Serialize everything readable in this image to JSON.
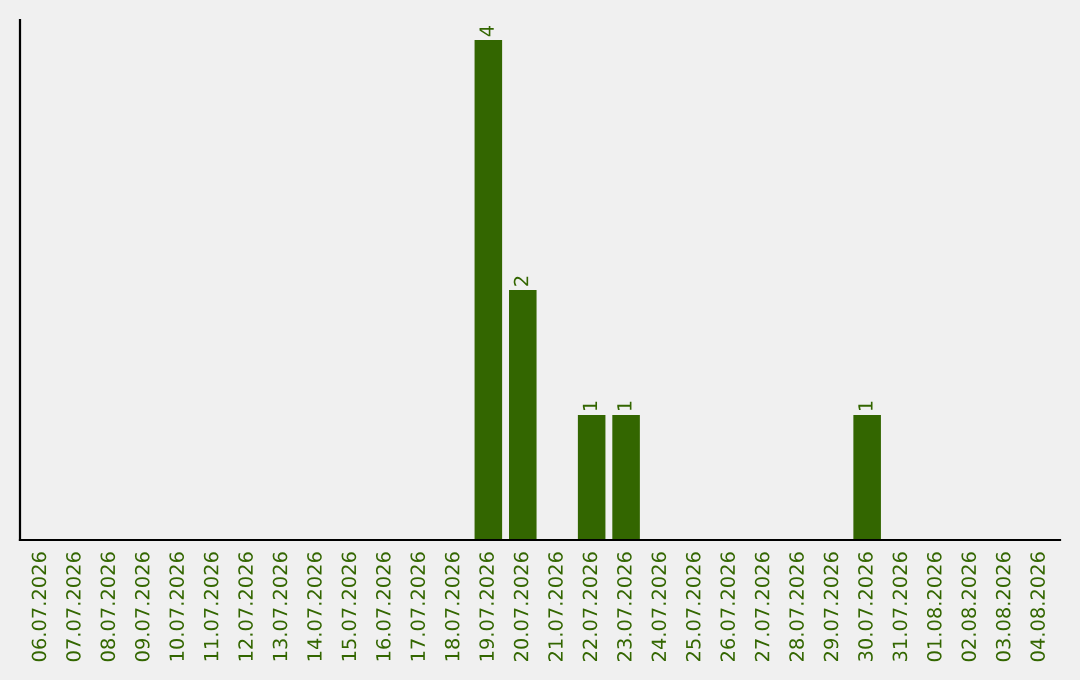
{
  "chart_data": {
    "type": "bar",
    "categories": [
      "06.07.2026",
      "07.07.2026",
      "08.07.2026",
      "09.07.2026",
      "10.07.2026",
      "11.07.2026",
      "12.07.2026",
      "13.07.2026",
      "14.07.2026",
      "15.07.2026",
      "16.07.2026",
      "17.07.2026",
      "18.07.2026",
      "19.07.2026",
      "20.07.2026",
      "21.07.2026",
      "22.07.2026",
      "23.07.2026",
      "24.07.2026",
      "25.07.2026",
      "26.07.2026",
      "27.07.2026",
      "28.07.2026",
      "29.07.2026",
      "30.07.2026",
      "31.07.2026",
      "01.08.2026",
      "02.08.2026",
      "03.08.2026",
      "04.08.2026"
    ],
    "values": [
      null,
      null,
      null,
      null,
      null,
      null,
      null,
      null,
      null,
      null,
      null,
      null,
      null,
      4,
      2,
      null,
      1,
      1,
      null,
      null,
      null,
      null,
      null,
      null,
      1,
      null,
      null,
      null,
      null,
      null
    ],
    "value_labels": [
      null,
      null,
      null,
      null,
      null,
      null,
      null,
      null,
      null,
      null,
      null,
      null,
      null,
      "4",
      "2",
      null,
      "1",
      "1",
      null,
      null,
      null,
      null,
      null,
      null,
      "1",
      null,
      null,
      null,
      null,
      null
    ],
    "color": "#336600",
    "tick_labels": "x",
    "grid": false
  }
}
